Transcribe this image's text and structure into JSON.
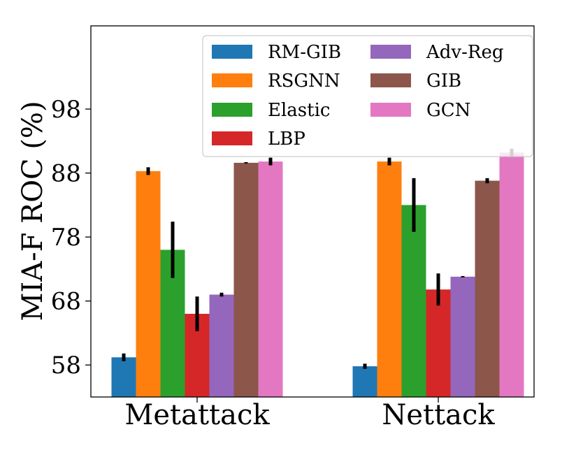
{
  "chart_data": {
    "type": "bar",
    "title": "",
    "xlabel": "",
    "ylabel": "MIA-F ROC (%)",
    "ylim": [
      53,
      111
    ],
    "yticks": [
      58,
      68,
      78,
      88,
      98
    ],
    "categories": [
      "Metattack",
      "Nettack"
    ],
    "legend": {
      "placement": "top-right",
      "columns": 2
    },
    "grid": false,
    "series": [
      {
        "name": "RM-GIB",
        "color": "#1f77b4",
        "values": [
          59.2,
          57.8
        ],
        "errors": [
          0.6,
          0.4
        ]
      },
      {
        "name": "RSGNN",
        "color": "#ff7f0e",
        "values": [
          88.3,
          89.8
        ],
        "errors": [
          0.6,
          0.6
        ]
      },
      {
        "name": "Elastic",
        "color": "#2ca02c",
        "values": [
          76.0,
          83.0
        ],
        "errors": [
          4.4,
          4.2
        ]
      },
      {
        "name": "LBP",
        "color": "#d62728",
        "values": [
          66.0,
          69.8
        ],
        "errors": [
          2.7,
          2.5
        ]
      },
      {
        "name": "Adv-Reg",
        "color": "#9467bd",
        "values": [
          69.0,
          71.8
        ],
        "errors": [
          0.3,
          0.1
        ]
      },
      {
        "name": "GIB",
        "color": "#8c564b",
        "values": [
          89.6,
          86.8
        ],
        "errors": [
          0.1,
          0.4
        ]
      },
      {
        "name": "GCN",
        "color": "#e377c2",
        "values": [
          89.8,
          91.2
        ],
        "errors": [
          0.6,
          0.6
        ]
      }
    ]
  }
}
